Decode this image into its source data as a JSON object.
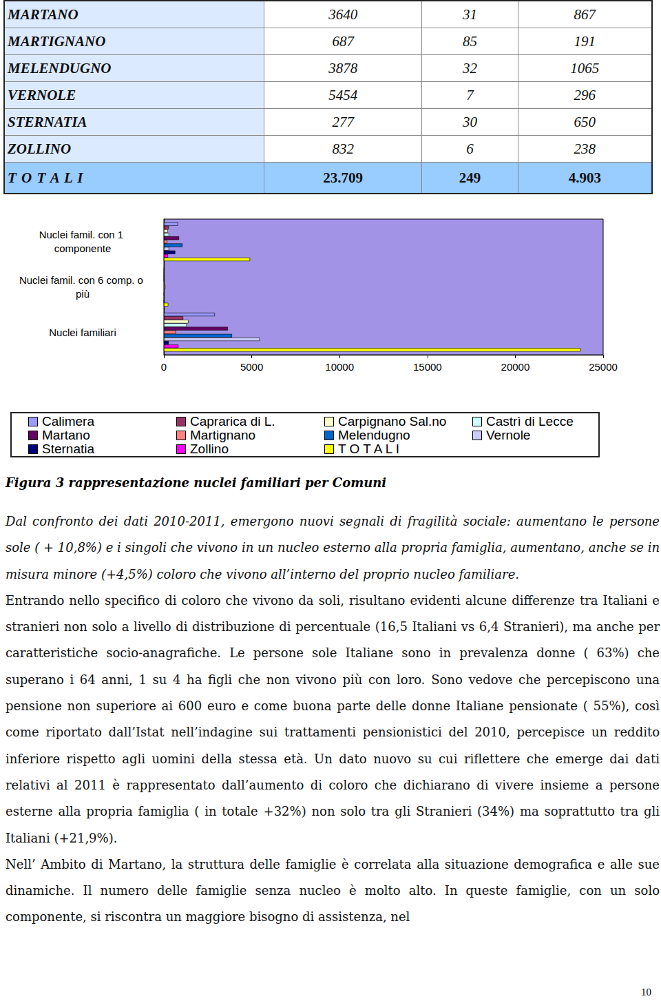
{
  "table": {
    "rows": [
      [
        "MARTANO",
        "3640",
        "31",
        "867"
      ],
      [
        "MARTIGNANO",
        "687",
        "85",
        "191"
      ],
      [
        "MELENDUGNO",
        "3878",
        "32",
        "1065"
      ],
      [
        "VERNOLE",
        "5454",
        "7",
        "296"
      ],
      [
        "STERNATIA",
        "277",
        "30",
        "650"
      ],
      [
        "ZOLLINO",
        "832",
        "6",
        "238"
      ]
    ],
    "total": [
      "T O T A L I",
      "23.709",
      "249",
      "4.903"
    ]
  },
  "chart_data": {
    "type": "bar",
    "orientation": "horizontal",
    "categories": [
      "Nuclei familiari",
      "Nuclei famil. con 6 comp. o più",
      "Nuclei famil. con 1 componente"
    ],
    "series": [
      {
        "name": "Calimera",
        "color": "#9999ff",
        "values": [
          2900,
          20,
          800
        ]
      },
      {
        "name": "Caprarica di L.",
        "color": "#993366",
        "values": [
          1100,
          15,
          280
        ]
      },
      {
        "name": "Carpignano Sal.no",
        "color": "#ffffcc",
        "values": [
          1400,
          12,
          220
        ]
      },
      {
        "name": "Castrì di Lecce",
        "color": "#ccffff",
        "values": [
          1300,
          11,
          296
        ]
      },
      {
        "name": "Martano",
        "color": "#660066",
        "values": [
          3640,
          31,
          867
        ]
      },
      {
        "name": "Martignano",
        "color": "#ff8080",
        "values": [
          687,
          85,
          191
        ]
      },
      {
        "name": "Melendugno",
        "color": "#0066cc",
        "values": [
          3878,
          32,
          1065
        ]
      },
      {
        "name": "Vernole",
        "color": "#ccccff",
        "values": [
          5454,
          7,
          296
        ]
      },
      {
        "name": "Sternatia",
        "color": "#000080",
        "values": [
          277,
          30,
          650
        ]
      },
      {
        "name": "Zollino",
        "color": "#ff00ff",
        "values": [
          832,
          6,
          238
        ]
      },
      {
        "name": "T O T A L I",
        "color": "#ffff00",
        "values": [
          23709,
          249,
          4903
        ]
      }
    ],
    "xlim": [
      0,
      25000
    ],
    "xticks": [
      0,
      5000,
      10000,
      15000,
      20000,
      25000
    ],
    "grid": false,
    "legend": "bottom"
  },
  "caption": "Figura 3 rappresentazione nuclei familiari per Comuni",
  "paragraphs": [
    "Dal confronto dei dati 2010-2011, emergono nuovi segnali di fragilità sociale: aumentano le persone sole ( + 10,8%) e i singoli che vivono in un nucleo esterno alla propria famiglia, aumentano, anche se in misura minore (+4,5%) coloro che vivono all’interno del proprio nucleo familiare.",
    "Entrando nello specifico di coloro che vivono da soli, risultano evidenti alcune differenze tra Italiani e stranieri non solo a livello di distribuzione di percentuale (16,5 Italiani vs 6,4 Stranieri), ma anche per caratteristiche socio-anagrafiche. Le persone sole Italiane sono in prevalenza donne ( 63%) che superano i 64 anni, 1 su 4 ha figli che non vivono più con loro. Sono vedove che percepiscono una pensione non superiore ai 600 euro e come buona parte delle donne Italiane pensionate ( 55%), così come riportato dall’Istat nell’indagine sui trattamenti pensionistici del 2010, percepisce un reddito inferiore rispetto agli uomini della stessa età. Un dato nuovo su cui riflettere che emerge dai dati relativi al 2011 è rappresentato dall’aumento di coloro che dichiarano di vivere insieme a persone esterne alla propria famiglia ( in totale +32%) non solo tra gli Stranieri (34%) ma soprattutto tra gli Italiani (+21,9%).",
    "Nell’ Ambito di Martano, la struttura delle famiglie è correlata alla situazione demografica e alle sue dinamiche. Il numero delle famiglie senza nucleo è molto alto. In queste famiglie, con un solo componente, si riscontra un maggiore bisogno di assistenza, nel"
  ],
  "page_number": "10"
}
